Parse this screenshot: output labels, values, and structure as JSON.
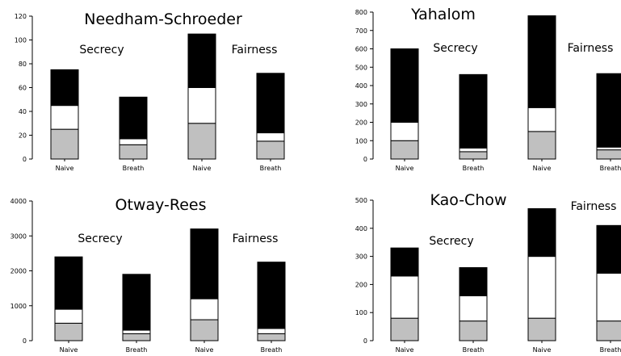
{
  "chart_data": [
    {
      "type": "bar",
      "stacked": true,
      "title": "Needham-Schroeder",
      "groups": [
        "Secrecy",
        "Fairness"
      ],
      "categories": [
        "Naive",
        "Breath",
        "Naive",
        "Breath"
      ],
      "ylim": [
        0,
        120
      ],
      "yticks": [
        0,
        20,
        40,
        60,
        80,
        100,
        120
      ],
      "series": [
        {
          "color": "#c0c0c0",
          "values": [
            25,
            12,
            30,
            15
          ]
        },
        {
          "color": "#ffffff",
          "values": [
            20,
            5,
            30,
            7
          ]
        },
        {
          "color": "#000000",
          "values": [
            30,
            35,
            45,
            50
          ]
        }
      ]
    },
    {
      "type": "bar",
      "stacked": true,
      "title": "Yahalom",
      "groups": [
        "Secrecy",
        "Fairness"
      ],
      "categories": [
        "Naive",
        "Breath",
        "Naive",
        "Breath"
      ],
      "ylim": [
        0,
        800
      ],
      "yticks": [
        0,
        100,
        200,
        300,
        400,
        500,
        600,
        700,
        800
      ],
      "series": [
        {
          "color": "#c0c0c0",
          "values": [
            100,
            40,
            150,
            50
          ]
        },
        {
          "color": "#ffffff",
          "values": [
            100,
            20,
            130,
            15
          ]
        },
        {
          "color": "#000000",
          "values": [
            400,
            400,
            500,
            400
          ]
        }
      ]
    },
    {
      "type": "bar",
      "stacked": true,
      "title": "Otway-Rees",
      "groups": [
        "Secrecy",
        "Fairness"
      ],
      "categories": [
        "Naive",
        "Breath",
        "Naive",
        "Breath"
      ],
      "ylim": [
        0,
        4000
      ],
      "yticks": [
        0,
        1000,
        2000,
        3000,
        4000
      ],
      "series": [
        {
          "color": "#c0c0c0",
          "values": [
            500,
            200,
            600,
            200
          ]
        },
        {
          "color": "#ffffff",
          "values": [
            400,
            100,
            600,
            150
          ]
        },
        {
          "color": "#000000",
          "values": [
            1500,
            1600,
            2000,
            1900
          ]
        }
      ]
    },
    {
      "type": "bar",
      "stacked": true,
      "title": "Kao-Chow",
      "groups": [
        "Secrecy",
        "Fairness"
      ],
      "categories": [
        "Naive",
        "Breath",
        "Naive",
        "Breath"
      ],
      "ylim": [
        0,
        500
      ],
      "yticks": [
        0,
        100,
        200,
        300,
        400,
        500
      ],
      "series": [
        {
          "color": "#c0c0c0",
          "values": [
            80,
            70,
            80,
            70
          ]
        },
        {
          "color": "#ffffff",
          "values": [
            150,
            90,
            220,
            170
          ]
        },
        {
          "color": "#000000",
          "values": [
            100,
            100,
            170,
            170
          ]
        }
      ]
    }
  ]
}
